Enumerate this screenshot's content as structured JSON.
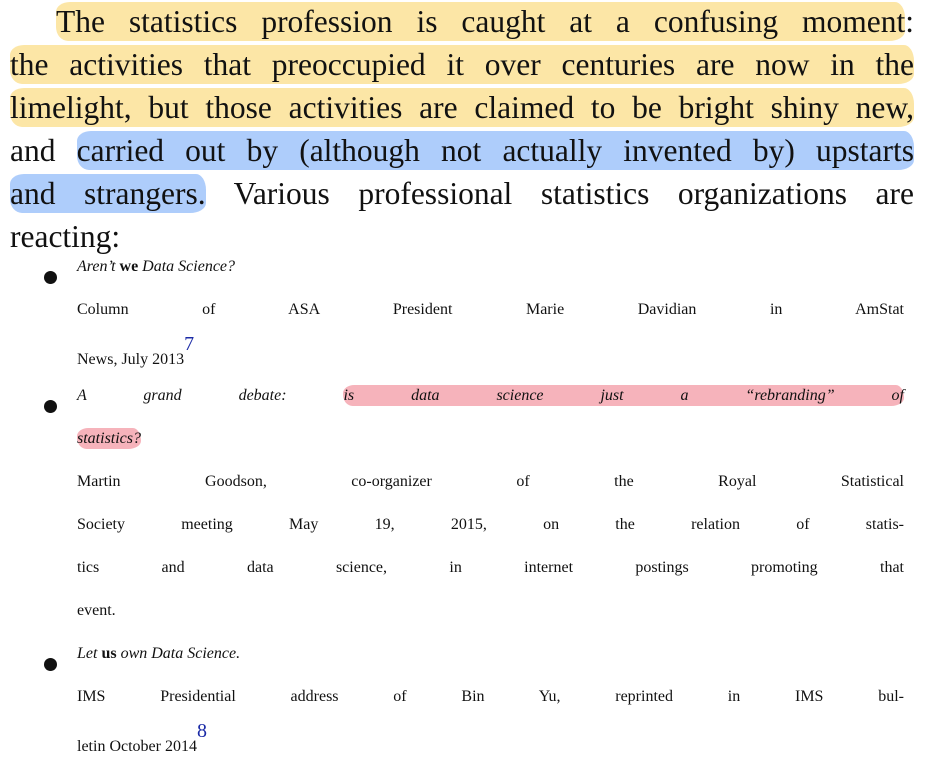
{
  "paragraph": {
    "l1_hl": "The statistics profession is caught at a confusing moment",
    "l1_end": ":",
    "l2": "the activities that preoccupied it over centuries are now in the",
    "l3": "limelight, but those activities are claimed to be bright shiny new,",
    "l4_pre": "and ",
    "l4_hl": "carried out by (although not actually invented by) upstarts",
    "l5_hl": "and strangers.",
    "l5_rest": " Various professional statistics organizations are",
    "l6": "reacting:"
  },
  "items": [
    {
      "title_a": "Aren’t ",
      "title_b": "we",
      "title_c": " Data Science?",
      "body_l1": "Column of ASA President Marie Davidian in AmStat",
      "body_l2": "News, July 2013",
      "footnote": "7"
    },
    {
      "title_l1_pre": "A grand debate: ",
      "title_l1_hl": "is data science just a “rebranding” of",
      "title_l2_hl": "statistics?",
      "body_l1": "Martin Goodson, co-organizer of the Royal Statistical",
      "body_l2": "Society meeting May 19, 2015, on the relation of statis-",
      "body_l3": "tics and data science, in internet postings promoting that",
      "body_l4": "event."
    },
    {
      "title_a": "Let ",
      "title_b": "us",
      "title_c": " own Data Science.",
      "body_l1": "IMS Presidential address of Bin Yu, reprinted in IMS bul-",
      "body_l2": "letin October 2014",
      "footnote": "8"
    }
  ],
  "colors": {
    "highlight_yellow": "#fce296",
    "highlight_blue": "#a0c4fa",
    "highlight_red": "#f4a0aa",
    "footnote_link": "#1a2aa6"
  }
}
